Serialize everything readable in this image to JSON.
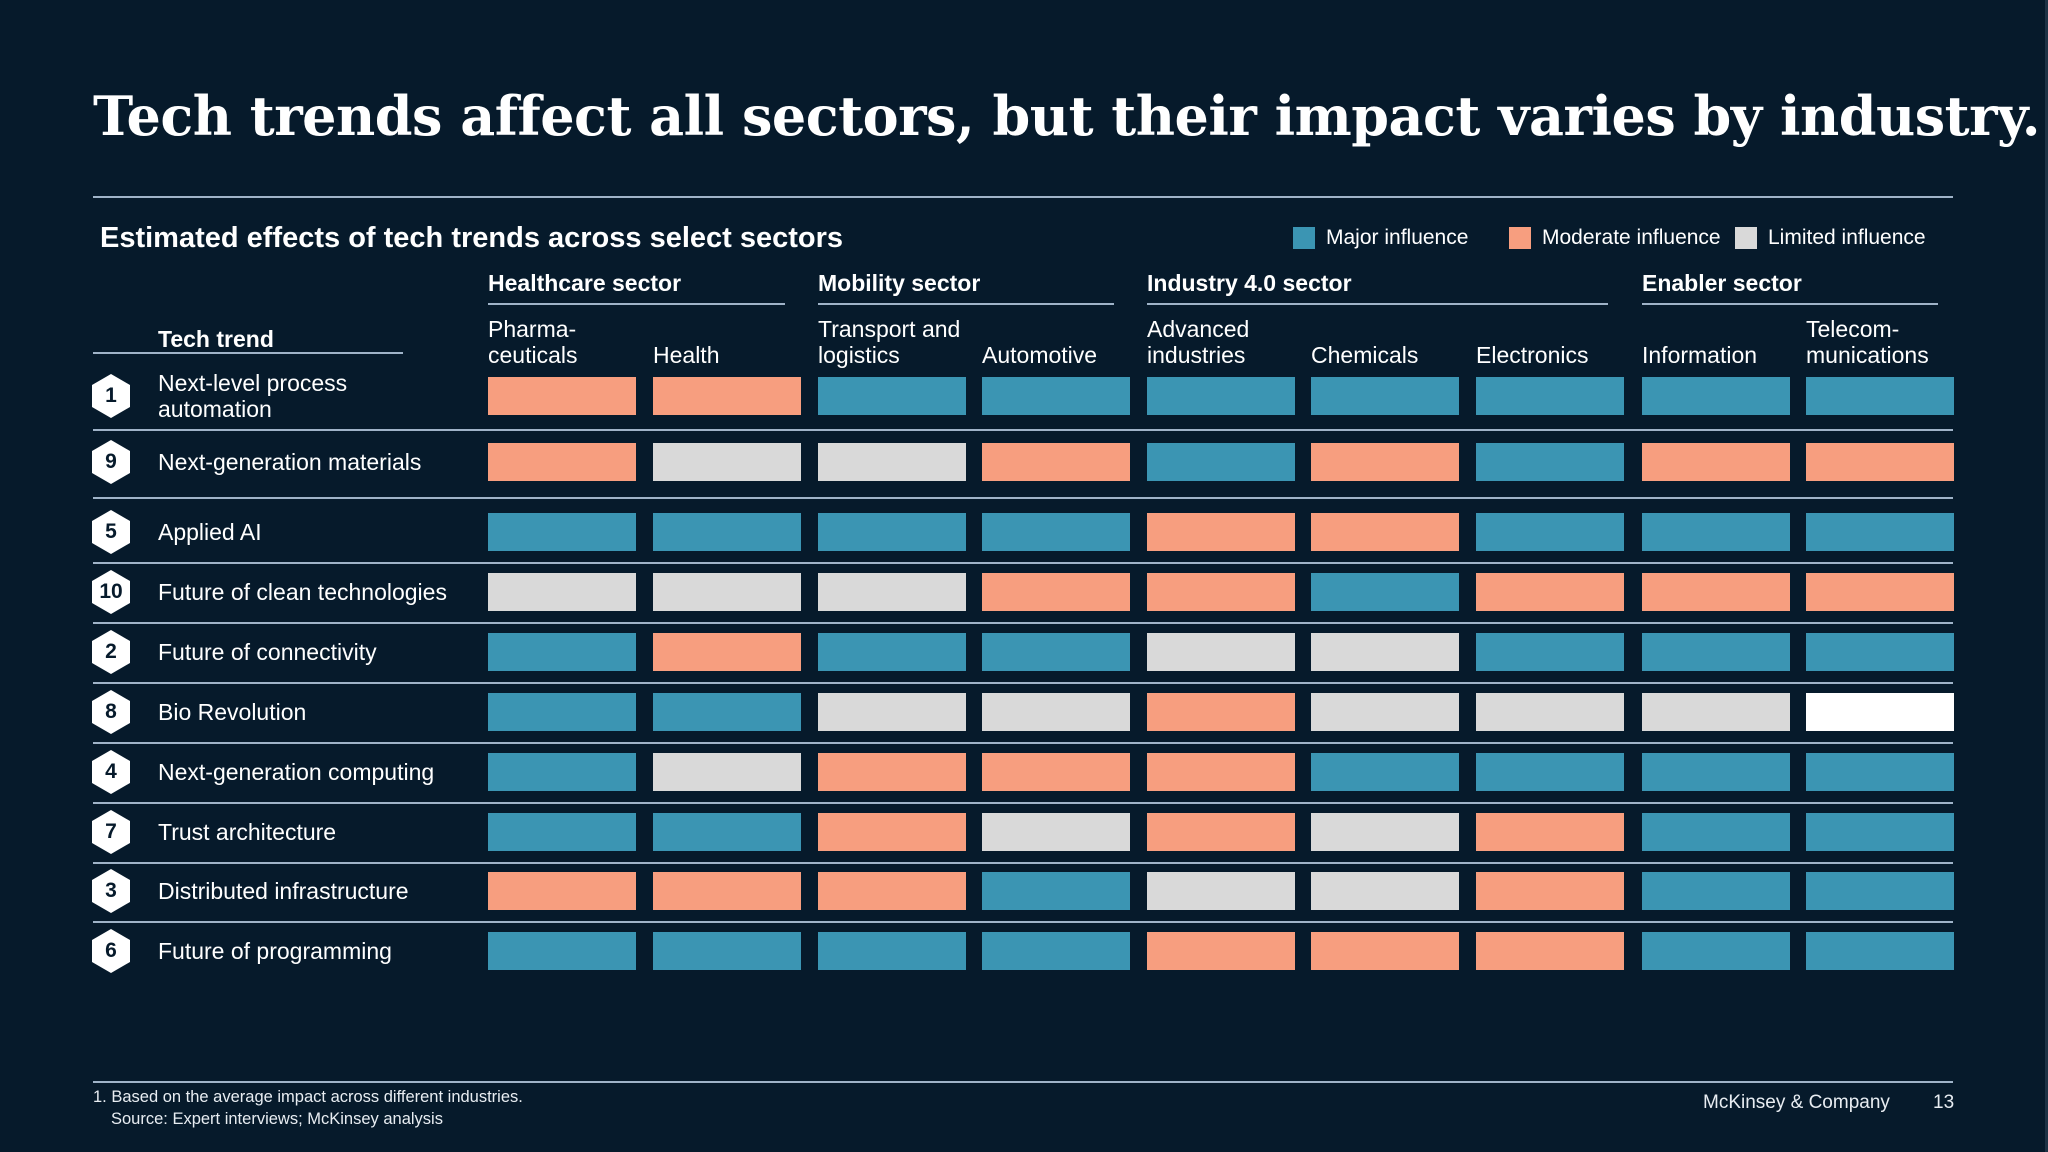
{
  "title": "Tech trends affect all sectors, but their impact varies by industry.",
  "subtitle": "Estimated effects of tech trends across select sectors",
  "legend": [
    {
      "label": "Major influence",
      "key": "major",
      "color": "#3b95b3"
    },
    {
      "label": "Moderate influence",
      "key": "moderate",
      "color": "#f79e7f"
    },
    {
      "label": "Limited influence",
      "key": "limited",
      "color": "#d9d9d9"
    }
  ],
  "colors": {
    "major": "#3b95b3",
    "moderate": "#f79e7f",
    "limited": "#d9d9d9",
    "none": "#ffffff",
    "background": "#061a2b"
  },
  "chart_data": {
    "type": "table",
    "row_header": "Tech trend",
    "sectors": [
      {
        "name": "Healthcare sector",
        "columns": [
          "Pharma-\nceuticals",
          "Health"
        ]
      },
      {
        "name": "Mobility sector",
        "columns": [
          "Transport and\nlogistics",
          "Automotive"
        ]
      },
      {
        "name": "Industry 4.0 sector",
        "columns": [
          "Advanced\nindustries",
          "Chemicals",
          "Electronics"
        ]
      },
      {
        "name": "Enabler sector",
        "columns": [
          "Information",
          "Telecom-\nmunications"
        ]
      }
    ],
    "rows": [
      {
        "number": "1",
        "trend": "Next-level process\nautomation",
        "values": [
          "moderate",
          "moderate",
          "major",
          "major",
          "major",
          "major",
          "major",
          "major",
          "major"
        ]
      },
      {
        "number": "9",
        "trend": "Next-generation materials",
        "values": [
          "moderate",
          "limited",
          "limited",
          "moderate",
          "major",
          "moderate",
          "major",
          "moderate",
          "moderate"
        ]
      },
      {
        "number": "5",
        "trend": "Applied AI",
        "values": [
          "major",
          "major",
          "major",
          "major",
          "moderate",
          "moderate",
          "major",
          "major",
          "major"
        ]
      },
      {
        "number": "10",
        "trend": "Future of clean technologies",
        "values": [
          "limited",
          "limited",
          "limited",
          "moderate",
          "moderate",
          "major",
          "moderate",
          "moderate",
          "moderate"
        ]
      },
      {
        "number": "2",
        "trend": "Future of connectivity",
        "values": [
          "major",
          "moderate",
          "major",
          "major",
          "limited",
          "limited",
          "major",
          "major",
          "major"
        ]
      },
      {
        "number": "8",
        "trend": "Bio Revolution",
        "values": [
          "major",
          "major",
          "limited",
          "limited",
          "moderate",
          "limited",
          "limited",
          "limited",
          "none"
        ]
      },
      {
        "number": "4",
        "trend": "Next-generation computing",
        "values": [
          "major",
          "limited",
          "moderate",
          "moderate",
          "moderate",
          "major",
          "major",
          "major",
          "major"
        ]
      },
      {
        "number": "7",
        "trend": "Trust architecture",
        "values": [
          "major",
          "major",
          "moderate",
          "limited",
          "moderate",
          "limited",
          "moderate",
          "major",
          "major"
        ]
      },
      {
        "number": "3",
        "trend": "Distributed infrastructure",
        "values": [
          "moderate",
          "moderate",
          "moderate",
          "major",
          "limited",
          "limited",
          "moderate",
          "major",
          "major"
        ]
      },
      {
        "number": "6",
        "trend": "Future of programming",
        "values": [
          "major",
          "major",
          "major",
          "major",
          "moderate",
          "moderate",
          "moderate",
          "major",
          "major"
        ]
      }
    ]
  },
  "footer": {
    "footnote": "1. Based on the average impact across different industries.",
    "source": "Source: Expert interviews; McKinsey analysis",
    "brand": "McKinsey & Company",
    "page": "13"
  }
}
